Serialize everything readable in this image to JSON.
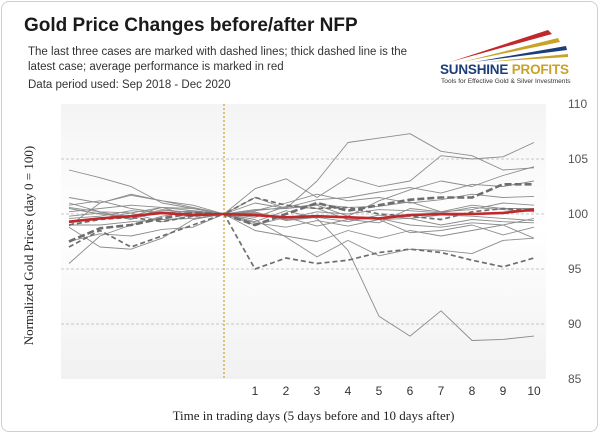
{
  "header": {
    "title": "Gold Price Changes before/after NFP",
    "subtitle": "The last three cases are marked with dashed lines; thick dashed line is the latest case; average performance is marked in red",
    "period": "Data period used: Sep 2018 - Dec 2020"
  },
  "logo": {
    "name_part1": "SUNSHINE",
    "name_part2": "PROFITS",
    "tagline": "Tools for Effective Gold & Silver Investments",
    "colors": {
      "navy": "#1d3d7a",
      "gold": "#c9a227",
      "red": "#c0282c"
    }
  },
  "chart_data": {
    "type": "line",
    "title": "Gold Price Changes before/after NFP",
    "xlabel": "Time in trading days (5 days before and 10 days after)",
    "ylabel": "Normalized Gold Prices (day 0 = 100)",
    "x": [
      -5,
      -4,
      -3,
      -2,
      -1,
      0,
      1,
      2,
      3,
      4,
      5,
      6,
      7,
      8,
      9,
      10
    ],
    "x_tick_labels": [
      "1",
      "2",
      "3",
      "4",
      "5",
      "6",
      "7",
      "8",
      "9",
      "10"
    ],
    "ylim": [
      85,
      110
    ],
    "y_ticks": [
      85,
      90,
      95,
      100,
      105,
      110
    ],
    "y_axis_position": "right",
    "grid": "horizontal dashed",
    "event_marker_x": 0,
    "colors": {
      "history": "#8c8c8c",
      "recent": "#6e6e6e",
      "average": "#c0282c",
      "event": "#c9a227"
    },
    "series": [
      {
        "style": "history",
        "values": [
          101.0,
          100.2,
          99.6,
          100.4,
          100.1,
          100,
          101.5,
          100.5,
          103.0,
          106.5,
          106.9,
          107.3,
          105.7,
          105.3,
          104.0,
          104.2
        ]
      },
      {
        "style": "history",
        "values": [
          100.6,
          100.2,
          100.1,
          100.6,
          100.3,
          100,
          102.3,
          103.2,
          101.5,
          103.3,
          102.5,
          103.0,
          105.3,
          105.0,
          105.2,
          106.5
        ]
      },
      {
        "style": "history",
        "values": [
          104.0,
          103.3,
          102.5,
          101.0,
          100.5,
          100,
          101.0,
          100.5,
          100.8,
          99.8,
          101.2,
          102.2,
          103.0,
          102.5,
          103.5,
          104.3
        ]
      },
      {
        "style": "history",
        "values": [
          98.9,
          101.0,
          101.7,
          101.2,
          100.6,
          100,
          98.5,
          98.0,
          97.5,
          98.5,
          97.8,
          98.5,
          98.0,
          98.5,
          99.0,
          97.8
        ]
      },
      {
        "style": "history",
        "values": [
          100.8,
          101.2,
          100.5,
          100.1,
          100.3,
          100,
          99.5,
          97.9,
          96.1,
          97.6,
          96.2,
          96.8,
          96.7,
          96.4,
          97.6,
          97.8
        ]
      },
      {
        "style": "history",
        "values": [
          99.2,
          99.6,
          100.1,
          99.3,
          99.9,
          100,
          99.2,
          98.8,
          99.4,
          98.9,
          99.5,
          98.3,
          98.5,
          99.0,
          98.1,
          98.8
        ]
      },
      {
        "style": "history",
        "values": [
          95.5,
          98.0,
          99.0,
          99.8,
          100.2,
          100,
          100.3,
          101.0,
          101.8,
          101.2,
          101.5,
          101.0,
          101.3,
          101.8,
          101.5,
          101.6
        ]
      },
      {
        "style": "history",
        "values": [
          100.5,
          100.0,
          99.8,
          100.6,
          99.8,
          100,
          100.3,
          100.6,
          101.3,
          101.5,
          102.0,
          102.4,
          101.9,
          102.7,
          102.5,
          103.0
        ]
      },
      {
        "style": "history",
        "values": [
          99.0,
          99.0,
          99.3,
          99.5,
          99.6,
          100,
          100.4,
          100.5,
          100.9,
          100.6,
          100.7,
          101.1,
          100.2,
          100.8,
          100.5,
          100.5
        ]
      },
      {
        "style": "history",
        "values": [
          99.6,
          99.8,
          100.3,
          100.1,
          99.9,
          100,
          100.1,
          99.5,
          99.7,
          99.3,
          99.9,
          99.6,
          99.9,
          99.8,
          99.6,
          99.4
        ]
      },
      {
        "style": "history",
        "values": [
          98.8,
          97.0,
          96.8,
          97.8,
          99.5,
          100,
          99.0,
          99.7,
          98.9,
          99.5,
          99.6,
          99.0,
          98.8,
          99.2,
          99.0,
          99.6
        ]
      },
      {
        "style": "history",
        "values": [
          100.2,
          100.5,
          100.8,
          100.6,
          100.5,
          100,
          100.0,
          99.6,
          100.2,
          100.0,
          100.4,
          100.3,
          100.1,
          100.6,
          100.4,
          100.2
        ]
      },
      {
        "style": "history",
        "values": [
          101.5,
          101.0,
          101.8,
          101.2,
          100.8,
          100,
          99.7,
          100.7,
          100.5,
          99.5,
          99.2,
          100.5,
          100.2,
          100.4,
          101.0,
          100.8
        ]
      },
      {
        "style": "history",
        "values": [
          97.5,
          98.2,
          98.0,
          98.6,
          98.8,
          100,
          100.2,
          99.4,
          99.7,
          99.8,
          99.5,
          99.6,
          99.0,
          99.5,
          99.3,
          99.2
        ]
      },
      {
        "style": "history",
        "values": [
          99.8,
          100.1,
          99.5,
          100.3,
          100.2,
          100,
          99.3,
          100.3,
          99.6,
          96.7,
          90.7,
          88.9,
          91.2,
          88.5,
          88.6,
          88.9
        ]
      },
      {
        "style": "recent",
        "values": [
          97.0,
          98.5,
          97.0,
          98.0,
          99.0,
          100,
          95.0,
          96.0,
          95.5,
          95.8,
          96.5,
          96.8,
          96.5,
          95.8,
          95.2,
          96.0
        ]
      },
      {
        "style": "recent",
        "values": [
          99.0,
          99.5,
          99.7,
          99.3,
          99.8,
          100,
          101.5,
          100.8,
          100.5,
          100.6,
          100.0,
          99.8,
          99.5,
          100.2,
          100.5,
          100.3
        ]
      },
      {
        "style": "latest",
        "values": [
          97.5,
          98.7,
          99.0,
          99.6,
          100.1,
          100,
          99.0,
          100.0,
          101.0,
          100.3,
          100.8,
          101.3,
          101.5,
          101.5,
          102.7,
          102.7
        ]
      },
      {
        "style": "average",
        "values": [
          99.3,
          99.6,
          99.8,
          100.1,
          99.9,
          100,
          99.9,
          99.7,
          99.8,
          99.7,
          99.6,
          99.9,
          100.0,
          100.0,
          100.1,
          100.4
        ]
      }
    ]
  }
}
